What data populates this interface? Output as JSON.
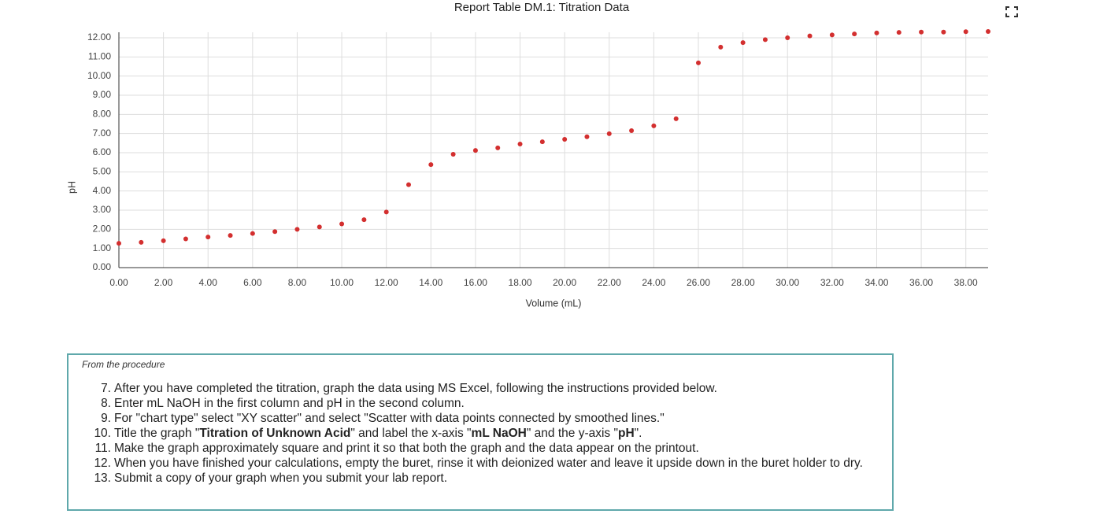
{
  "chart_data": {
    "type": "scatter",
    "title": "Report Table DM.1: Titration Data",
    "x_label": "Volume (mL)",
    "y_label": "pH",
    "x": [
      0,
      1,
      2,
      3,
      4,
      5,
      6,
      7,
      8,
      9,
      10,
      11,
      12,
      13,
      14,
      15,
      16,
      17,
      18,
      19,
      20,
      21,
      22,
      23,
      24,
      25,
      26,
      27,
      28,
      29,
      30,
      31,
      32,
      33,
      34,
      35,
      36,
      37,
      38,
      39
    ],
    "series": [
      {
        "color": "#d32f2f",
        "values": [
          1.27,
          1.32,
          1.4,
          1.5,
          1.6,
          1.68,
          1.78,
          1.88,
          2.0,
          2.12,
          2.28,
          2.5,
          2.9,
          4.33,
          5.38,
          5.92,
          6.12,
          6.25,
          6.45,
          6.57,
          6.7,
          6.83,
          6.99,
          7.15,
          7.4,
          7.77,
          10.69,
          11.51,
          11.75,
          11.9,
          12.0,
          12.1,
          12.15,
          12.2,
          12.25,
          12.28,
          12.3,
          12.3,
          12.32,
          12.33
        ]
      }
    ],
    "xlim": [
      0,
      39
    ],
    "ylim": [
      0,
      12
    ],
    "xticks": [
      {
        "value": 0,
        "label": "0.00"
      },
      {
        "value": 2,
        "label": "2.00"
      },
      {
        "value": 4,
        "label": "4.00"
      },
      {
        "value": 6,
        "label": "6.00"
      },
      {
        "value": 8,
        "label": "8.00"
      },
      {
        "value": 10,
        "label": "10.00"
      },
      {
        "value": 12,
        "label": "12.00"
      },
      {
        "value": 14,
        "label": "14.00"
      },
      {
        "value": 16,
        "label": "16.00"
      },
      {
        "value": 18,
        "label": "18.00"
      },
      {
        "value": 20,
        "label": "20.00"
      },
      {
        "value": 22,
        "label": "22.00"
      },
      {
        "value": 24,
        "label": "24.00"
      },
      {
        "value": 26,
        "label": "26.00"
      },
      {
        "value": 28,
        "label": "28.00"
      },
      {
        "value": 30,
        "label": "30.00"
      },
      {
        "value": 32,
        "label": "32.00"
      },
      {
        "value": 34,
        "label": "34.00"
      },
      {
        "value": 36,
        "label": "36.00"
      },
      {
        "value": 38,
        "label": "38.00"
      }
    ],
    "yticks": [
      {
        "value": 0,
        "label": "0.00"
      },
      {
        "value": 1,
        "label": "1.00"
      },
      {
        "value": 2,
        "label": "2.00"
      },
      {
        "value": 3,
        "label": "3.00"
      },
      {
        "value": 4,
        "label": "4.00"
      },
      {
        "value": 5,
        "label": "5.00"
      },
      {
        "value": 6,
        "label": "6.00"
      },
      {
        "value": 7,
        "label": "7.00"
      },
      {
        "value": 8,
        "label": "8.00"
      },
      {
        "value": 9,
        "label": "9.00"
      },
      {
        "value": 10,
        "label": "10.00"
      },
      {
        "value": 11,
        "label": "11.00"
      },
      {
        "value": 12,
        "label": "12.00"
      }
    ],
    "grid": true
  },
  "procedure": {
    "heading": "From the procedure",
    "items": [
      {
        "number": "7.",
        "parts": [
          {
            "text": "After you have completed the titration, graph the data using MS Excel, following the instructions provided below.",
            "bold": false
          }
        ]
      },
      {
        "number": "8.",
        "parts": [
          {
            "text": "Enter mL NaOH in the first column and pH in the second column.",
            "bold": false
          }
        ]
      },
      {
        "number": "9.",
        "parts": [
          {
            "text": "For \"chart type\" select \"XY scatter\" and select \"Scatter with data points connected by smoothed lines.\"",
            "bold": false
          }
        ]
      },
      {
        "number": "10.",
        "parts": [
          {
            "text": "Title the graph \"",
            "bold": false
          },
          {
            "text": "Titration of Unknown Acid",
            "bold": true
          },
          {
            "text": "\" and label the x-axis \"",
            "bold": false
          },
          {
            "text": "mL NaOH",
            "bold": true
          },
          {
            "text": "\" and the y-axis \"",
            "bold": false
          },
          {
            "text": "pH",
            "bold": true
          },
          {
            "text": "\".",
            "bold": false
          }
        ]
      },
      {
        "number": "11.",
        "parts": [
          {
            "text": "Make the graph approximately square and print it so that both the graph and the data appear on the printout.",
            "bold": false
          }
        ]
      },
      {
        "number": "12.",
        "parts": [
          {
            "text": "When you have finished your calculations, empty the buret, rinse it with deionized water and leave it upside down in the buret holder to dry.",
            "bold": false
          }
        ]
      },
      {
        "number": "13.",
        "parts": [
          {
            "text": "Submit a copy of your graph when you submit your lab report.",
            "bold": false
          }
        ]
      }
    ]
  }
}
